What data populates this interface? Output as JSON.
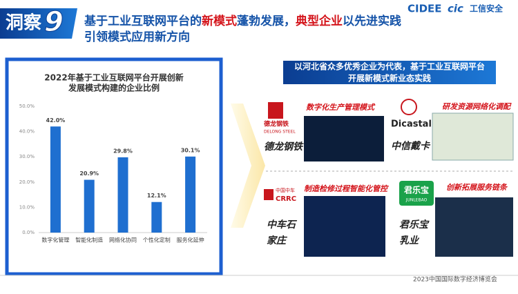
{
  "header": {
    "badge": "洞察",
    "badge_number": "9",
    "title_line1": [
      "基于工业互联网平台的",
      "新模式",
      "蓬勃发展，",
      "典型企业",
      "以先进实践"
    ],
    "title_line2": "引领模式应用新方向",
    "logos": [
      "CIDEE",
      "cic",
      "工信安全"
    ]
  },
  "chart_data": {
    "type": "bar",
    "title": [
      "2022年基于工业互联网平台开展创新",
      "发展模式构建的企业比例"
    ],
    "categories": [
      "数字化管理",
      "智能化制造",
      "网络化协同",
      "个性化定制",
      "服务化延伸"
    ],
    "values": [
      42.0,
      20.9,
      29.8,
      12.1,
      30.1
    ],
    "value_labels": [
      "42.0%",
      "20.9%",
      "29.8%",
      "12.1%",
      "30.1%"
    ],
    "color": "#1f6fd0",
    "ylim": [
      0,
      50
    ],
    "yticks": [
      {
        "value": 0,
        "label": "0.0%"
      },
      {
        "value": 10,
        "label": "10.0%"
      },
      {
        "value": 20,
        "label": "20.0%"
      },
      {
        "value": 30,
        "label": "30.0%"
      },
      {
        "value": 40,
        "label": "40.0%"
      },
      {
        "value": 50,
        "label": "50.0%"
      }
    ],
    "grid": false
  },
  "panel": {
    "banner": [
      "以河北省众多优秀企业为代表，基于工业互联网平台",
      "开展新模式新业态实践"
    ],
    "cases": [
      {
        "logo": [
          "德龙钢铁",
          "DELONG STEEL"
        ],
        "company": [
          "德龙钢铁"
        ],
        "mode": "数字化生产管理模式"
      },
      {
        "logo": [
          "Dicastal"
        ],
        "company": [
          "中信戴卡"
        ],
        "mode": "研发资源网络化调配"
      },
      {
        "logo": [
          "中国中车",
          "CRRC"
        ],
        "company": [
          "中车石",
          "家庄"
        ],
        "mode": "制造检修过程智能化管控"
      },
      {
        "logo": [
          "君乐宝",
          "JUNLEBAO"
        ],
        "company": [
          "君乐宝",
          "乳业"
        ],
        "mode": "创新拓展服务链条"
      }
    ]
  },
  "footer": "2023中国国际数字经济博览会"
}
